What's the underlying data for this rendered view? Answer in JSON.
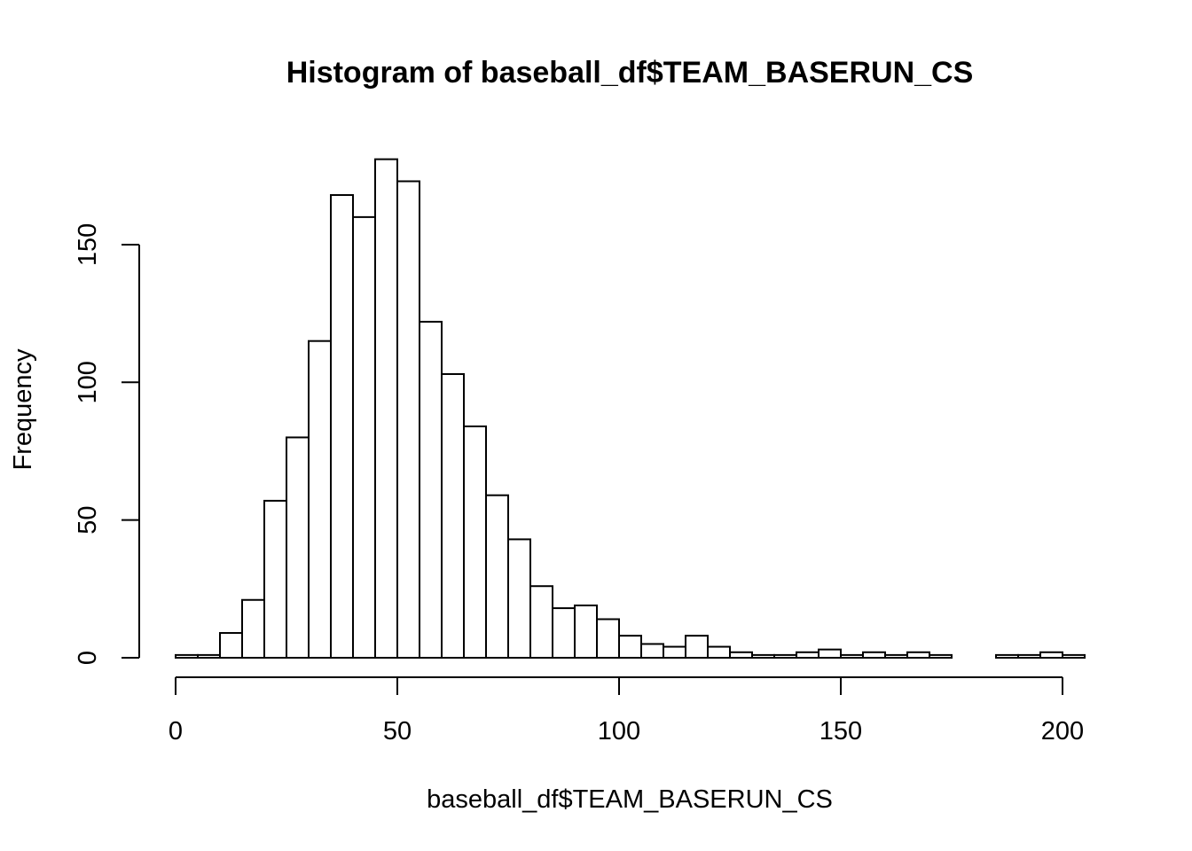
{
  "chart_data": {
    "type": "bar",
    "title": "Histogram of baseball_df$TEAM_BASERUN_CS",
    "xlabel": "baseball_df$TEAM_BASERUN_CS",
    "ylabel": "Frequency",
    "xlim": [
      0,
      205
    ],
    "ylim": [
      0,
      182
    ],
    "bin_width": 5,
    "bin_start": 0,
    "values": [
      1,
      1,
      9,
      21,
      57,
      80,
      115,
      168,
      160,
      181,
      173,
      122,
      103,
      84,
      59,
      43,
      26,
      18,
      19,
      14,
      8,
      5,
      4,
      8,
      4,
      2,
      1,
      1,
      2,
      3,
      1,
      2,
      1,
      2,
      1,
      0,
      0,
      1,
      1,
      2,
      1
    ],
    "x_ticks": [
      0,
      50,
      100,
      150,
      200
    ],
    "x_tick_labels": [
      "0",
      "50",
      "100",
      "150",
      "200"
    ],
    "y_ticks": [
      0,
      50,
      100,
      150
    ],
    "y_tick_labels": [
      "0",
      "50",
      "100",
      "150"
    ],
    "grid": false,
    "legend": "none"
  }
}
